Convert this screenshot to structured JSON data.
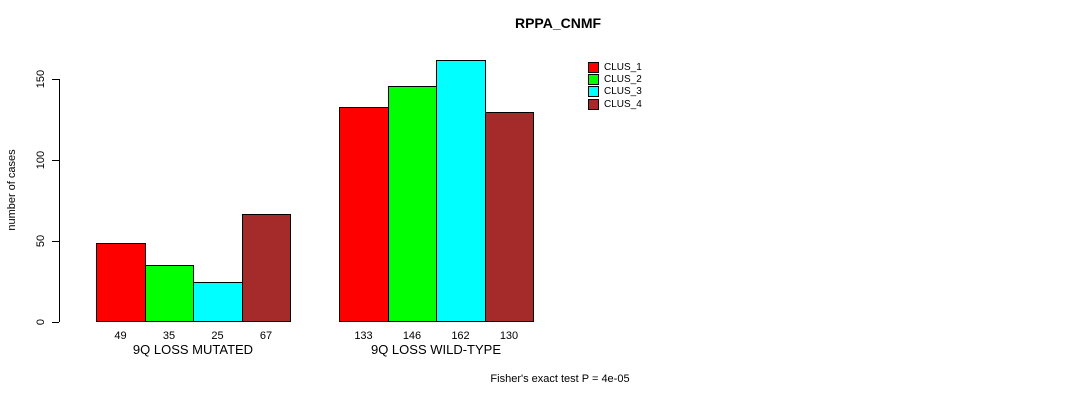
{
  "chart_data": {
    "type": "bar",
    "title": "RPPA_CNMF",
    "ylabel": "number of cases",
    "xlabel": "",
    "footnote": "Fisher's exact test P = 4e-05",
    "yticks": [
      0,
      50,
      100,
      150
    ],
    "ylim": [
      0,
      168
    ],
    "grid": false,
    "legend_position": "top-right",
    "background_color": "#FFFFFF",
    "axis_color": "#000000",
    "bar_outline_color": "#000000",
    "bar_value_labels": true,
    "categories": [
      "9Q LOSS MUTATED",
      "9Q LOSS WILD-TYPE"
    ],
    "series": [
      {
        "name": "CLUS_1",
        "color": "#FF0000",
        "values": [
          49,
          133
        ]
      },
      {
        "name": "CLUS_2",
        "color": "#00FF00",
        "values": [
          35,
          146
        ]
      },
      {
        "name": "CLUS_3",
        "color": "#00FFFF",
        "values": [
          25,
          162
        ]
      },
      {
        "name": "CLUS_4",
        "color": "#A52A2A",
        "values": [
          67,
          130
        ]
      }
    ]
  }
}
